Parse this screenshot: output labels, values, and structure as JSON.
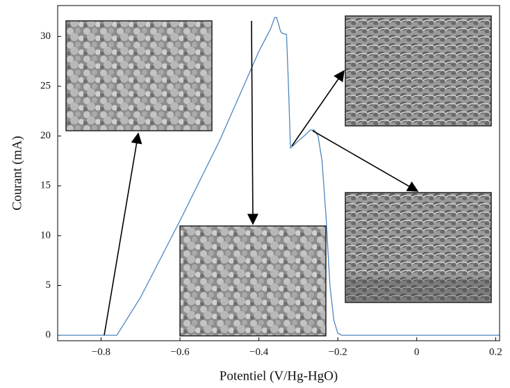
{
  "chart_data": {
    "type": "line",
    "xlabel": "Potentiel (V/Hg-HgO)",
    "ylabel": "Courant (mA)",
    "x": [
      -0.91,
      -0.76,
      -0.7,
      -0.6,
      -0.5,
      -0.45,
      -0.4,
      -0.37,
      -0.36,
      -0.355,
      -0.345,
      -0.34,
      -0.33,
      -0.325,
      -0.32,
      -0.3,
      -0.28,
      -0.27,
      -0.26,
      -0.25,
      -0.24,
      -0.23,
      -0.22,
      -0.21,
      -0.2,
      -0.19,
      0,
      0.21
    ],
    "values": [
      0,
      0,
      3.8,
      11.5,
      19.5,
      24,
      28.5,
      30.8,
      31.9,
      31.9,
      30.5,
      30.3,
      30.2,
      25,
      18.8,
      19.5,
      20.2,
      20.6,
      20.6,
      20,
      17.5,
      12,
      5,
      1.5,
      0.2,
      0,
      0,
      0
    ],
    "color": "#4f86bd",
    "xlim": [
      -0.91,
      0.21
    ],
    "ylim": [
      -0.55,
      33.1
    ],
    "xticks": [
      {
        "value": -0.8,
        "label": "−0.8"
      },
      {
        "value": -0.6,
        "label": "−0.6"
      },
      {
        "value": -0.4,
        "label": "−0.4"
      },
      {
        "value": -0.2,
        "label": "−0.2"
      },
      0,
      0.2
    ],
    "yticks": [
      0,
      5,
      10,
      15,
      20,
      25,
      30
    ],
    "grid": false
  }
}
